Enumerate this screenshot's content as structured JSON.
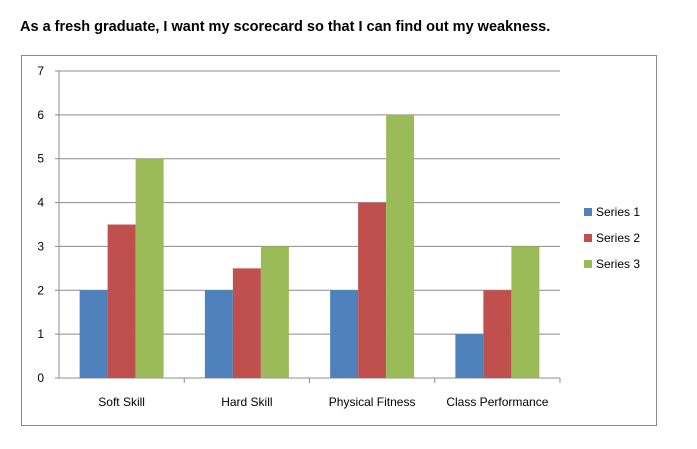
{
  "title": "As a fresh graduate, I want my scorecard so that I can find out my weakness.",
  "chart_data": {
    "type": "bar",
    "title": "As a fresh graduate, I want my scorecard so that I can find out my weakness.",
    "xlabel": "",
    "ylabel": "",
    "ylim": [
      0,
      7
    ],
    "yticks": [
      0,
      1,
      2,
      3,
      4,
      5,
      6,
      7
    ],
    "grid": true,
    "legend_position": "right",
    "categories": [
      "Soft Skill",
      "Hard Skill",
      "Physical Fitness",
      "Class Performance"
    ],
    "series": [
      {
        "name": "Series 1",
        "color": "#4f81bd",
        "values": [
          2,
          2,
          2,
          1
        ]
      },
      {
        "name": "Series 2",
        "color": "#c0504d",
        "values": [
          3.5,
          2.5,
          4,
          2
        ]
      },
      {
        "name": "Series 3",
        "color": "#9bbb59",
        "values": [
          5,
          3,
          6,
          3
        ]
      }
    ]
  }
}
